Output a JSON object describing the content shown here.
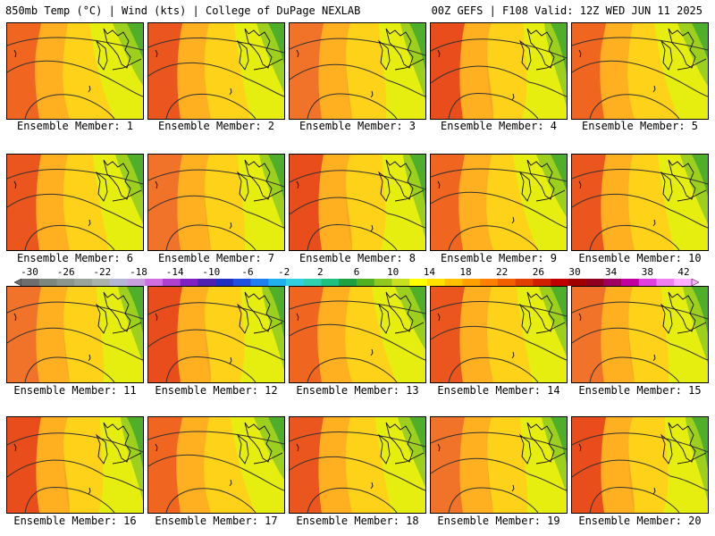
{
  "header": {
    "left": "850mb Temp (°C) | Wind (kts) | College of DuPage NEXLAB",
    "right": "00Z GEFS | F108 Valid: 12Z WED JUN 11 2025"
  },
  "panels": [
    {
      "label": "Ensemble Member: 1"
    },
    {
      "label": "Ensemble Member: 2"
    },
    {
      "label": "Ensemble Member: 3"
    },
    {
      "label": "Ensemble Member: 4"
    },
    {
      "label": "Ensemble Member: 5"
    },
    {
      "label": "Ensemble Member: 6"
    },
    {
      "label": "Ensemble Member: 7"
    },
    {
      "label": "Ensemble Member: 8"
    },
    {
      "label": "Ensemble Member: 9"
    },
    {
      "label": "Ensemble Member: 10"
    },
    {
      "label": "Ensemble Member: 11"
    },
    {
      "label": "Ensemble Member: 12"
    },
    {
      "label": "Ensemble Member: 13"
    },
    {
      "label": "Ensemble Member: 14"
    },
    {
      "label": "Ensemble Member: 15"
    },
    {
      "label": "Ensemble Member: 16"
    },
    {
      "label": "Ensemble Member: 17"
    },
    {
      "label": "Ensemble Member: 18"
    },
    {
      "label": "Ensemble Member: 19"
    },
    {
      "label": "Ensemble Member: 20"
    }
  ],
  "colorbar": {
    "labels": [
      "-30",
      "-26",
      "-22",
      "-18",
      "-14",
      "-10",
      "-6",
      "-2",
      "2",
      "6",
      "10",
      "14",
      "18",
      "22",
      "26",
      "30",
      "34",
      "38",
      "42"
    ],
    "colors": [
      "#6e6e6e",
      "#7d877d",
      "#8c968c",
      "#9aa59a",
      "#a9b3a9",
      "#b5b5d5",
      "#c8a0e0",
      "#d070e0",
      "#b040d0",
      "#8020c0",
      "#5020b0",
      "#2030c0",
      "#2050e0",
      "#2080f0",
      "#20b0f0",
      "#30d0e0",
      "#30d0b0",
      "#20c080",
      "#20a040",
      "#50b020",
      "#90c820",
      "#c8e020",
      "#ffff00",
      "#ffe000",
      "#ffc000",
      "#ffa000",
      "#ff8000",
      "#f06000",
      "#e04000",
      "#d02000",
      "#c00000",
      "#a00000",
      "#900020",
      "#a00060",
      "#c000a0",
      "#e040e0",
      "#f080f0",
      "#ffb0ff"
    ]
  }
}
